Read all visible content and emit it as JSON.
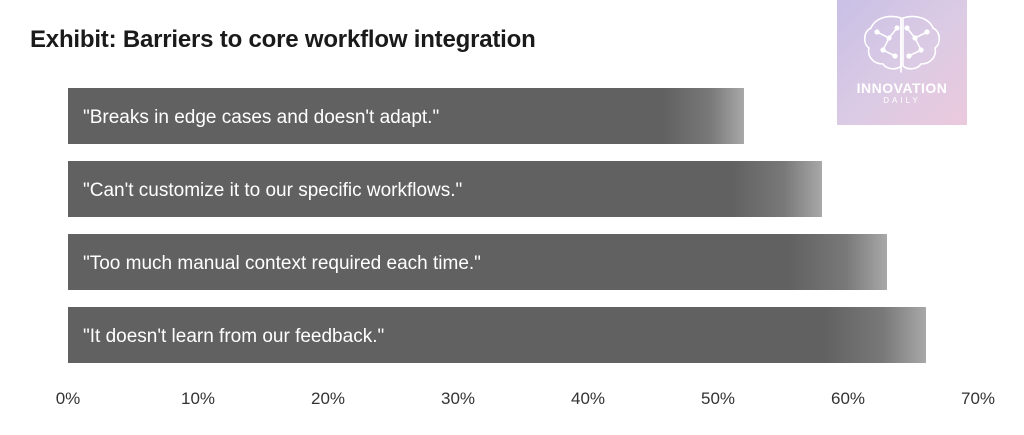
{
  "title": "Exhibit: Barriers to core workflow integration",
  "logo": {
    "name": "INNOVATION",
    "sub": "DAILY"
  },
  "colors": {
    "bar": "#616161",
    "bar_text": "#ffffff",
    "axis_text": "#333333",
    "title": "#1a1a1a"
  },
  "chart_data": {
    "type": "bar",
    "orientation": "horizontal",
    "categories": [
      "\"Breaks in edge cases and doesn't adapt.\"",
      "\"Can't customize it to our specific workflows.\"",
      "\"Too much manual context required each time.\"",
      "\"It doesn't learn from our feedback.\""
    ],
    "values": [
      52,
      58,
      63,
      66
    ],
    "xlim": [
      0,
      70
    ],
    "xticks": [
      "0%",
      "10%",
      "20%",
      "30%",
      "40%",
      "50%",
      "60%",
      "70%"
    ],
    "grid": false,
    "legend": "none",
    "title": "Exhibit: Barriers to core workflow integration"
  }
}
